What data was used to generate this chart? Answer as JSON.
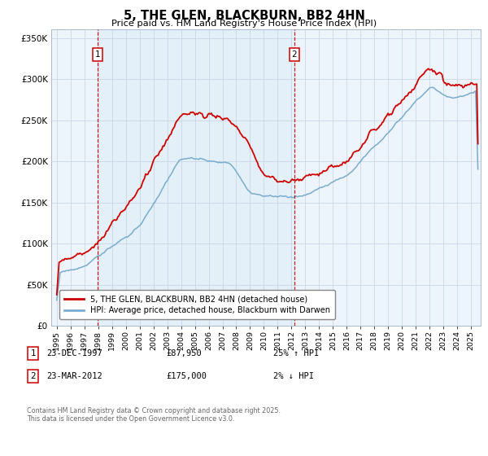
{
  "title": "5, THE GLEN, BLACKBURN, BB2 4HN",
  "subtitle": "Price paid vs. HM Land Registry's House Price Index (HPI)",
  "legend_line1": "5, THE GLEN, BLACKBURN, BB2 4HN (detached house)",
  "legend_line2": "HPI: Average price, detached house, Blackburn with Darwen",
  "annotation1_date": "23-DEC-1997",
  "annotation1_price": "£87,950",
  "annotation1_hpi": "25% ↑ HPI",
  "annotation2_date": "23-MAR-2012",
  "annotation2_price": "£175,000",
  "annotation2_hpi": "2% ↓ HPI",
  "footer": "Contains HM Land Registry data © Crown copyright and database right 2025.\nThis data is licensed under the Open Government Licence v3.0.",
  "red_color": "#cc0000",
  "blue_color": "#7aacce",
  "shade_color": "#ddeeff",
  "vline_color": "#cc0000",
  "ylim": [
    0,
    360000
  ],
  "yticks": [
    0,
    50000,
    100000,
    150000,
    200000,
    250000,
    300000,
    350000
  ],
  "xlim_start": 1994.6,
  "xlim_end": 2025.7
}
